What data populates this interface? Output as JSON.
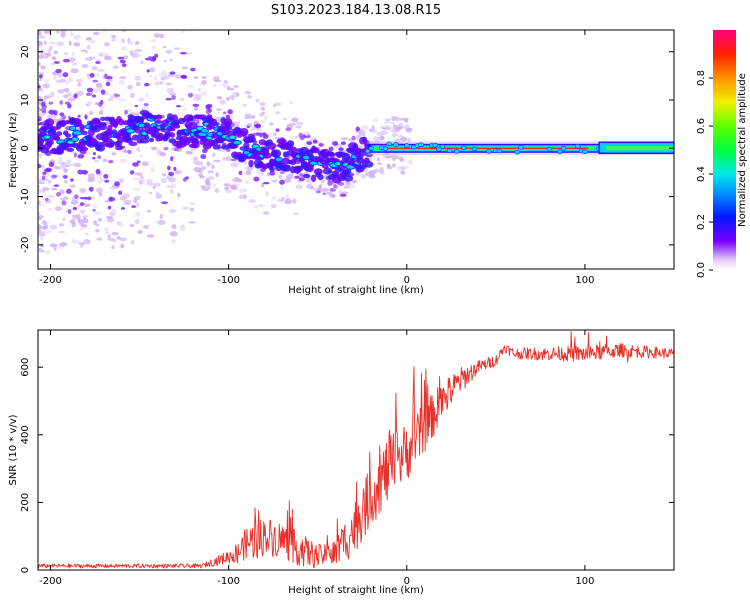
{
  "title": "S103.2023.184.13.08.R15",
  "colors": {
    "snr_line": "#e8312a",
    "axis": "#000000"
  },
  "chart_data": [
    {
      "type": "heatmap",
      "name": "spectrogram",
      "xlabel": "Height of straight line (km)",
      "ylabel": "Frequency (Hz)",
      "xlim": [
        -207,
        150
      ],
      "ylim": [
        -25,
        24.5
      ],
      "xticks": [
        -200,
        -100,
        0,
        100
      ],
      "yticks": [
        -20,
        -10,
        0,
        10,
        20
      ],
      "ridge": {
        "x": [
          -207,
          -195,
          -180,
          -165,
          -150,
          -140,
          -130,
          -120,
          -110,
          -100,
          -90,
          -80,
          -70,
          -60,
          -50,
          -40,
          -35,
          -30,
          -25,
          -20,
          -10,
          0,
          10,
          50,
          100,
          110,
          120,
          150
        ],
        "y": [
          2,
          2.5,
          3,
          3,
          4,
          5,
          4,
          3.5,
          3.5,
          2.5,
          0,
          -1.5,
          -1.5,
          -2.5,
          -3.5,
          -4.5,
          -4,
          -2.5,
          -1,
          0,
          0.5,
          1,
          0,
          0,
          0,
          0,
          0.5,
          0.5
        ]
      },
      "colorbar": {
        "label": "Normalized spectral amplitude",
        "ticks": [
          0.0,
          0.2,
          0.4,
          0.6,
          0.8
        ],
        "tick_labels": [
          "0.0",
          "0.2",
          "0.4",
          "0.6",
          "0.8"
        ],
        "range": [
          0,
          1
        ]
      }
    },
    {
      "type": "line",
      "name": "snr",
      "xlabel": "Height of straight line (km)",
      "ylabel": "SNR (10 * v/v)",
      "xlim": [
        -207,
        150
      ],
      "ylim": [
        0,
        710
      ],
      "xticks": [
        -200,
        -100,
        0,
        100
      ],
      "yticks": [
        0,
        200,
        400,
        600
      ],
      "trend": {
        "x": [
          -207,
          -150,
          -115,
          -105,
          -95,
          -90,
          -80,
          -70,
          -60,
          -50,
          -40,
          -30,
          -20,
          -10,
          0,
          10,
          20,
          30,
          40,
          50,
          55,
          60,
          80,
          100,
          120,
          150
        ],
        "y": [
          12,
          12,
          12,
          30,
          50,
          80,
          100,
          90,
          60,
          40,
          50,
          120,
          220,
          300,
          350,
          420,
          500,
          560,
          600,
          620,
          660,
          640,
          640,
          640,
          650,
          640
        ]
      },
      "noise": {
        "x": [
          -207,
          -115,
          -100,
          -85,
          -60,
          -45,
          -30,
          -10,
          20,
          40,
          55,
          100,
          150
        ],
        "amp": [
          6,
          6,
          20,
          60,
          50,
          30,
          80,
          100,
          60,
          20,
          15,
          25,
          15
        ]
      }
    }
  ]
}
